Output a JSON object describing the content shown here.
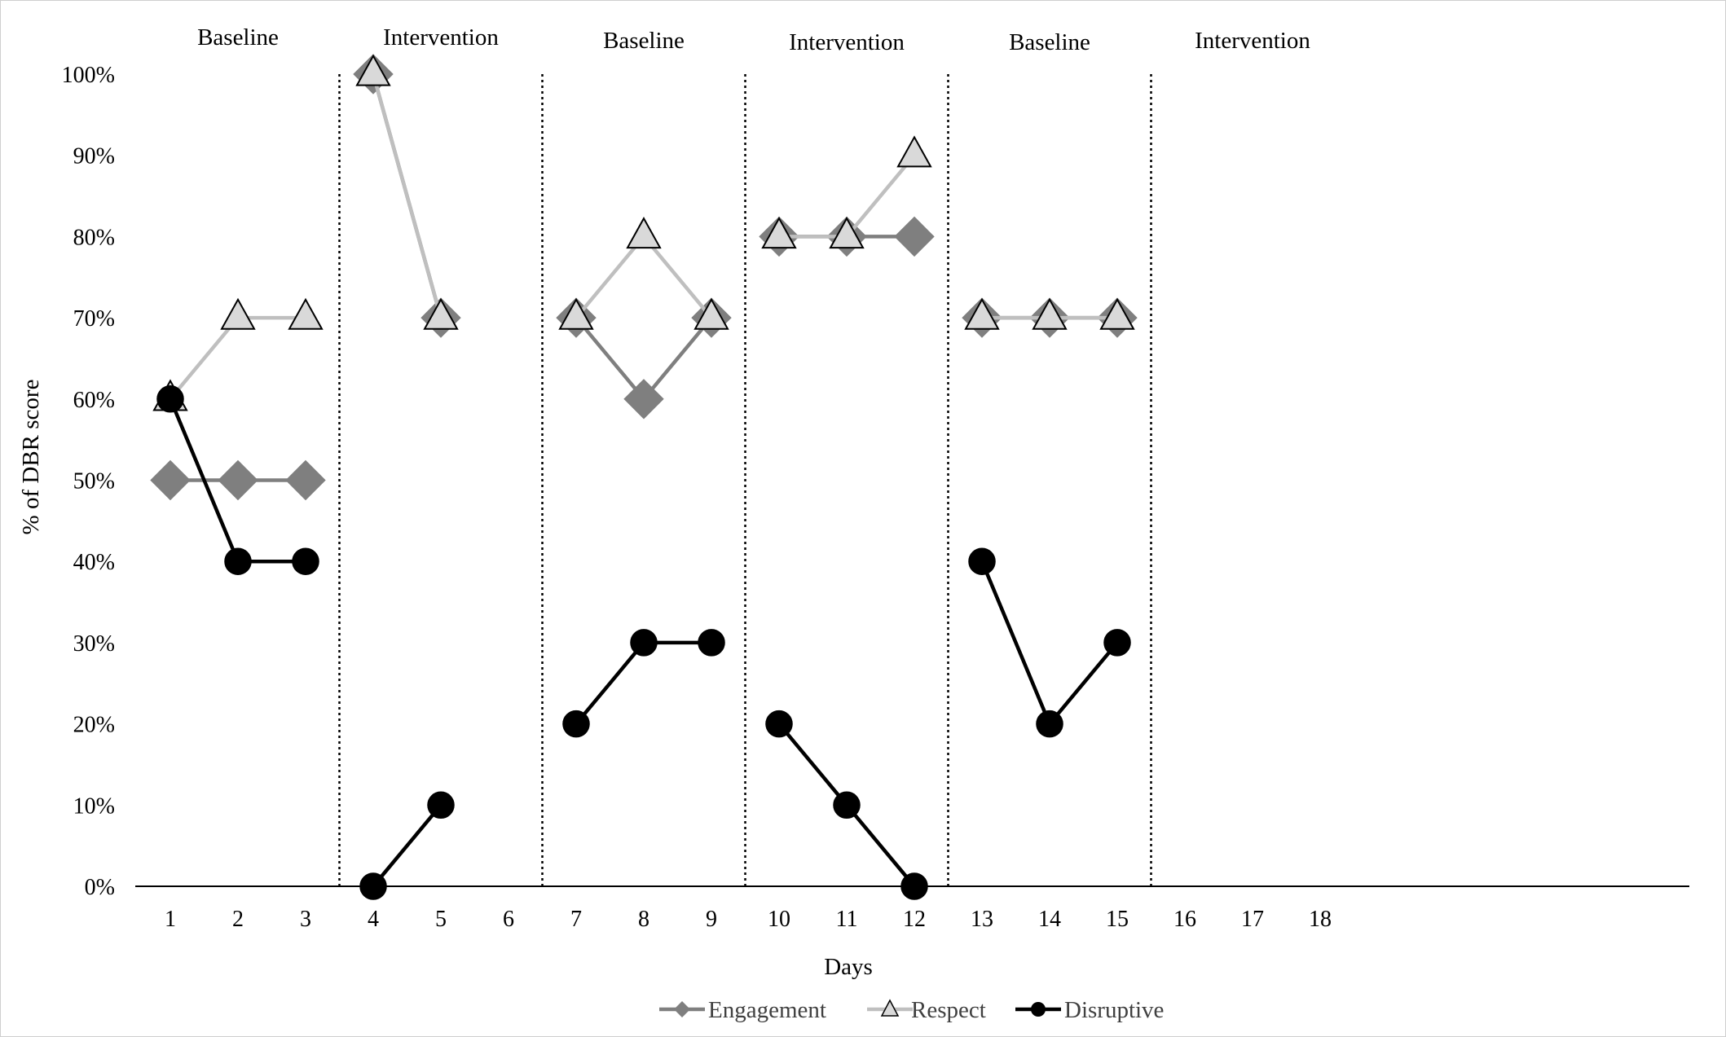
{
  "chart_data": {
    "type": "line",
    "xlabel": "Days",
    "ylabel": "% of DBR score",
    "x": [
      1,
      2,
      3,
      4,
      5,
      6,
      7,
      8,
      9,
      10,
      11,
      12,
      13,
      14,
      15,
      16,
      17,
      18
    ],
    "x_tick_labels": [
      "1",
      "2",
      "3",
      "4",
      "5",
      "6",
      "7",
      "8",
      "9",
      "10",
      "11",
      "12",
      "13",
      "14",
      "15",
      "16",
      "17",
      "18"
    ],
    "ylim": [
      0,
      100
    ],
    "y_ticks": [
      0,
      10,
      20,
      30,
      40,
      50,
      60,
      70,
      80,
      90,
      100
    ],
    "y_tick_labels": [
      "0%",
      "10%",
      "20%",
      "30%",
      "40%",
      "50%",
      "60%",
      "70%",
      "80%",
      "90%",
      "100%"
    ],
    "grid": false,
    "legend_position": "bottom",
    "phases": [
      {
        "label": "Baseline",
        "days": [
          1,
          3
        ]
      },
      {
        "label": "Intervention",
        "days": [
          4,
          6
        ]
      },
      {
        "label": "Baseline",
        "days": [
          7,
          9
        ]
      },
      {
        "label": "Intervention",
        "days": [
          10,
          12
        ]
      },
      {
        "label": "Baseline",
        "days": [
          13,
          15
        ]
      },
      {
        "label": "Intervention",
        "days": [
          16,
          18
        ]
      }
    ],
    "phase_dividers_after_day": [
      3.5,
      6.5,
      9.5,
      12.5,
      15.5
    ],
    "series": [
      {
        "name": "Engagement",
        "marker": "diamond",
        "line_color": "#7f7f7f",
        "marker_fill": "#7f7f7f",
        "segments": [
          [
            [
              1,
              50
            ],
            [
              2,
              50
            ],
            [
              3,
              50
            ]
          ],
          [
            [
              4,
              100
            ],
            [
              5,
              70
            ]
          ],
          [
            [
              7,
              70
            ],
            [
              8,
              60
            ],
            [
              9,
              70
            ]
          ],
          [
            [
              10,
              80
            ],
            [
              11,
              80
            ],
            [
              12,
              80
            ]
          ],
          [
            [
              13,
              70
            ],
            [
              14,
              70
            ],
            [
              15,
              70
            ]
          ]
        ]
      },
      {
        "name": "Respect",
        "marker": "triangle",
        "line_color": "#bfbfbf",
        "marker_fill": "#d9d9d9",
        "segments": [
          [
            [
              1,
              60
            ],
            [
              2,
              70
            ],
            [
              3,
              70
            ]
          ],
          [
            [
              4,
              100
            ],
            [
              5,
              70
            ]
          ],
          [
            [
              7,
              70
            ],
            [
              8,
              80
            ],
            [
              9,
              70
            ]
          ],
          [
            [
              10,
              80
            ],
            [
              11,
              80
            ],
            [
              12,
              90
            ]
          ],
          [
            [
              13,
              70
            ],
            [
              14,
              70
            ],
            [
              15,
              70
            ]
          ]
        ]
      },
      {
        "name": "Disruptive",
        "marker": "circle",
        "line_color": "#000000",
        "marker_fill": "#000000",
        "segments": [
          [
            [
              1,
              60
            ],
            [
              2,
              40
            ],
            [
              3,
              40
            ]
          ],
          [
            [
              4,
              0
            ],
            [
              5,
              10
            ]
          ],
          [
            [
              7,
              20
            ],
            [
              8,
              30
            ],
            [
              9,
              30
            ]
          ],
          [
            [
              10,
              20
            ],
            [
              11,
              10
            ],
            [
              12,
              0
            ]
          ],
          [
            [
              13,
              40
            ],
            [
              14,
              20
            ],
            [
              15,
              30
            ]
          ]
        ]
      }
    ]
  }
}
